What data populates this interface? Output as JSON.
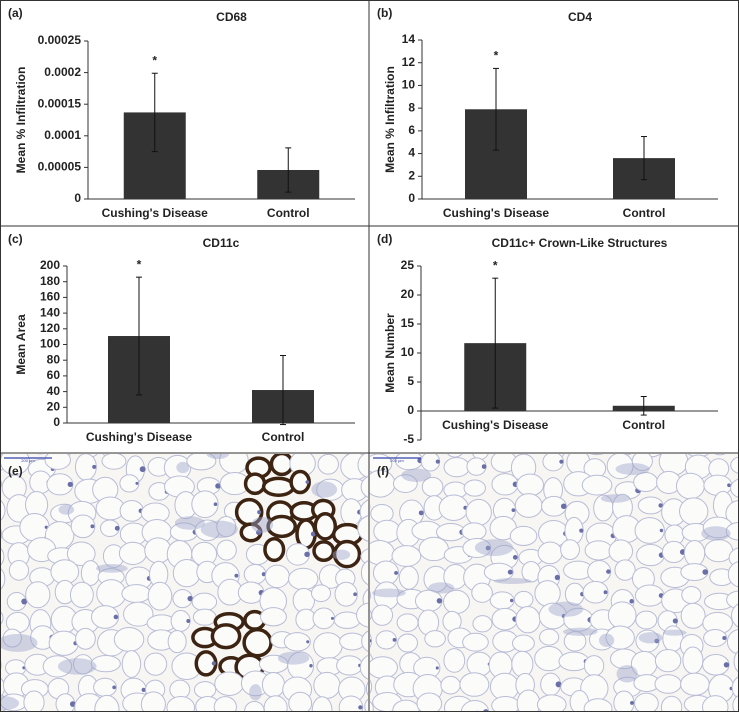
{
  "chart_data": [
    {
      "type": "bar",
      "panel_label": "(a)",
      "title": "CD68",
      "y_label": "Mean % Infiltration",
      "categories": [
        "Cushing's Disease",
        "Control"
      ],
      "values": [
        0.000137,
        4.59e-05
      ],
      "errors": [
        6.2e-05,
        3.5e-05
      ],
      "significance": [
        "*",
        null
      ],
      "color": "#333333",
      "ylim": [
        0,
        0.00025
      ],
      "yticks": [
        0,
        5e-05,
        0.0001,
        0.00015,
        0.0002,
        0.00025
      ]
    },
    {
      "type": "bar",
      "panel_label": "(b)",
      "title": "CD4",
      "y_label": "Mean % Infiltration",
      "categories": [
        "Cushing's Disease",
        "Control"
      ],
      "values": [
        7.9,
        3.6
      ],
      "errors": [
        3.6,
        1.9
      ],
      "significance": [
        "*",
        null
      ],
      "color": "#333333",
      "ylim": [
        0,
        14
      ],
      "yticks": [
        0,
        2,
        4,
        6,
        8,
        10,
        12,
        14
      ]
    },
    {
      "type": "bar",
      "panel_label": "(c)",
      "title": "CD11c",
      "y_label": "Mean Area",
      "categories": [
        "Cushing's Disease",
        "Control"
      ],
      "values": [
        110.8,
        42
      ],
      "errors": [
        75,
        44
      ],
      "significance": [
        "*",
        null
      ],
      "color": "#333333",
      "ylim": [
        0,
        200
      ],
      "yticks": [
        0,
        20,
        40,
        60,
        80,
        100,
        120,
        140,
        160,
        180,
        200
      ]
    },
    {
      "type": "bar",
      "panel_label": "(d)",
      "title": "CD11c+ Crown-Like Structures",
      "y_label": "Mean Number",
      "categories": [
        "Cushing's Disease",
        "Control"
      ],
      "values": [
        11.7,
        0.9
      ],
      "errors": [
        11.2,
        1.6
      ],
      "significance": [
        "*",
        null
      ],
      "color": "#333333",
      "ylim": [
        -5,
        25
      ],
      "yticks": [
        -5,
        0,
        5,
        10,
        15,
        20,
        25
      ]
    }
  ],
  "images": [
    {
      "panel_label": "(e)",
      "scale_label": "200 µm"
    },
    {
      "panel_label": "(f)",
      "scale_label": "200 µm"
    }
  ]
}
